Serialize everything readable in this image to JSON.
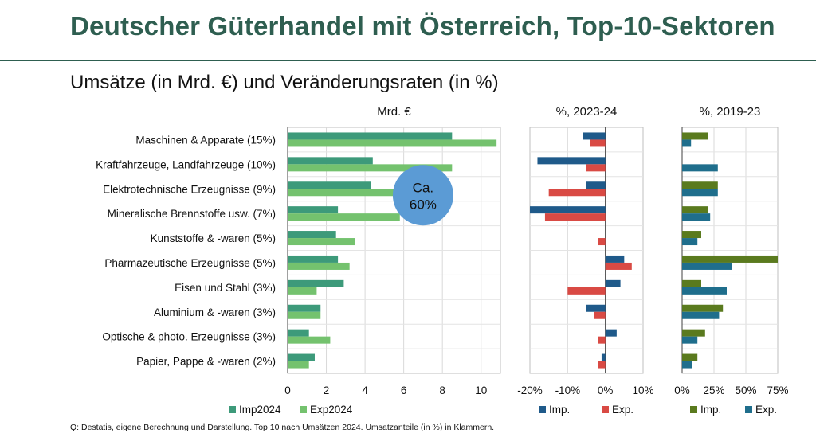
{
  "header": {
    "title": "Deutscher Güterhandel mit Österreich, Top-10-Sektoren",
    "subtitle": "Umsätze (in Mrd. €) und Veränderungsraten (in %)"
  },
  "colors": {
    "imp2024": "#3d9a7a",
    "exp2024": "#74c26e",
    "imp_blue": "#1f5a8a",
    "exp_red": "#d94a44",
    "imp_olive": "#5a7a1e",
    "exp_teal": "#1f6e8c",
    "bubble": "#5b9bd5"
  },
  "chart_data": [
    {
      "type": "bar",
      "orientation": "horizontal",
      "title": "Mrd. €",
      "categories": [
        "Maschinen & Apparate (15%)",
        "Kraftfahrzeuge, Landfahrzeuge (10%)",
        "Elektrotechnische Erzeugnisse (9%)",
        "Mineralische Brennstoffe usw. (7%)",
        "Kunststoffe & -waren (5%)",
        "Pharmazeutische Erzeugnisse (5%)",
        "Eisen und Stahl (3%)",
        "Aluminium & -waren (3%)",
        "Optische & photo. Erzeugnisse (3%)",
        "Papier, Pappe & -waren (2%)"
      ],
      "series": [
        {
          "name": "Imp2024",
          "values": [
            8.5,
            4.4,
            4.3,
            2.6,
            2.5,
            2.6,
            2.9,
            1.7,
            1.1,
            1.4
          ]
        },
        {
          "name": "Exp2024",
          "values": [
            10.8,
            8.5,
            5.6,
            5.8,
            3.5,
            3.2,
            1.5,
            1.7,
            2.2,
            1.1
          ]
        }
      ],
      "xlim": [
        0,
        11
      ],
      "xticks": [
        0,
        2,
        4,
        6,
        8,
        10
      ],
      "xtick_labels": [
        "0",
        "2",
        "4",
        "6",
        "8",
        "10"
      ],
      "annotation": {
        "line1": "Ca.",
        "line2": "60%",
        "x": 7,
        "category_index": 2.0
      }
    },
    {
      "type": "bar",
      "orientation": "horizontal",
      "title": "%, 2023-24",
      "series": [
        {
          "name": "Imp.",
          "values": [
            -6,
            -18,
            -5,
            -20,
            0,
            5,
            4,
            -5,
            3,
            -1
          ]
        },
        {
          "name": "Exp.",
          "values": [
            -4,
            -5,
            -15,
            -16,
            -2,
            7,
            -10,
            -3,
            -2,
            -2
          ]
        }
      ],
      "xlim": [
        -20,
        10
      ],
      "xticks": [
        -20,
        -10,
        0,
        10
      ],
      "xtick_labels": [
        "-20%",
        "-10%",
        "0%",
        "10%"
      ]
    },
    {
      "type": "bar",
      "orientation": "horizontal",
      "title": "%, 2019-23",
      "series": [
        {
          "name": "Imp.",
          "values": [
            20,
            0,
            28,
            20,
            15,
            75,
            15,
            32,
            18,
            12
          ]
        },
        {
          "name": "Exp.",
          "values": [
            7,
            28,
            28,
            22,
            12,
            39,
            35,
            29,
            12,
            8
          ]
        }
      ],
      "xlim": [
        0,
        75
      ],
      "xticks": [
        0,
        25,
        50,
        75
      ],
      "xtick_labels": [
        "0%",
        "25%",
        "50%",
        "75%"
      ]
    }
  ],
  "footnote": "Q: Destatis, eigene Berechnung und Darstellung. Top 10 nach Umsätzen 2024. Umsatzanteile (in %) in Klammern."
}
